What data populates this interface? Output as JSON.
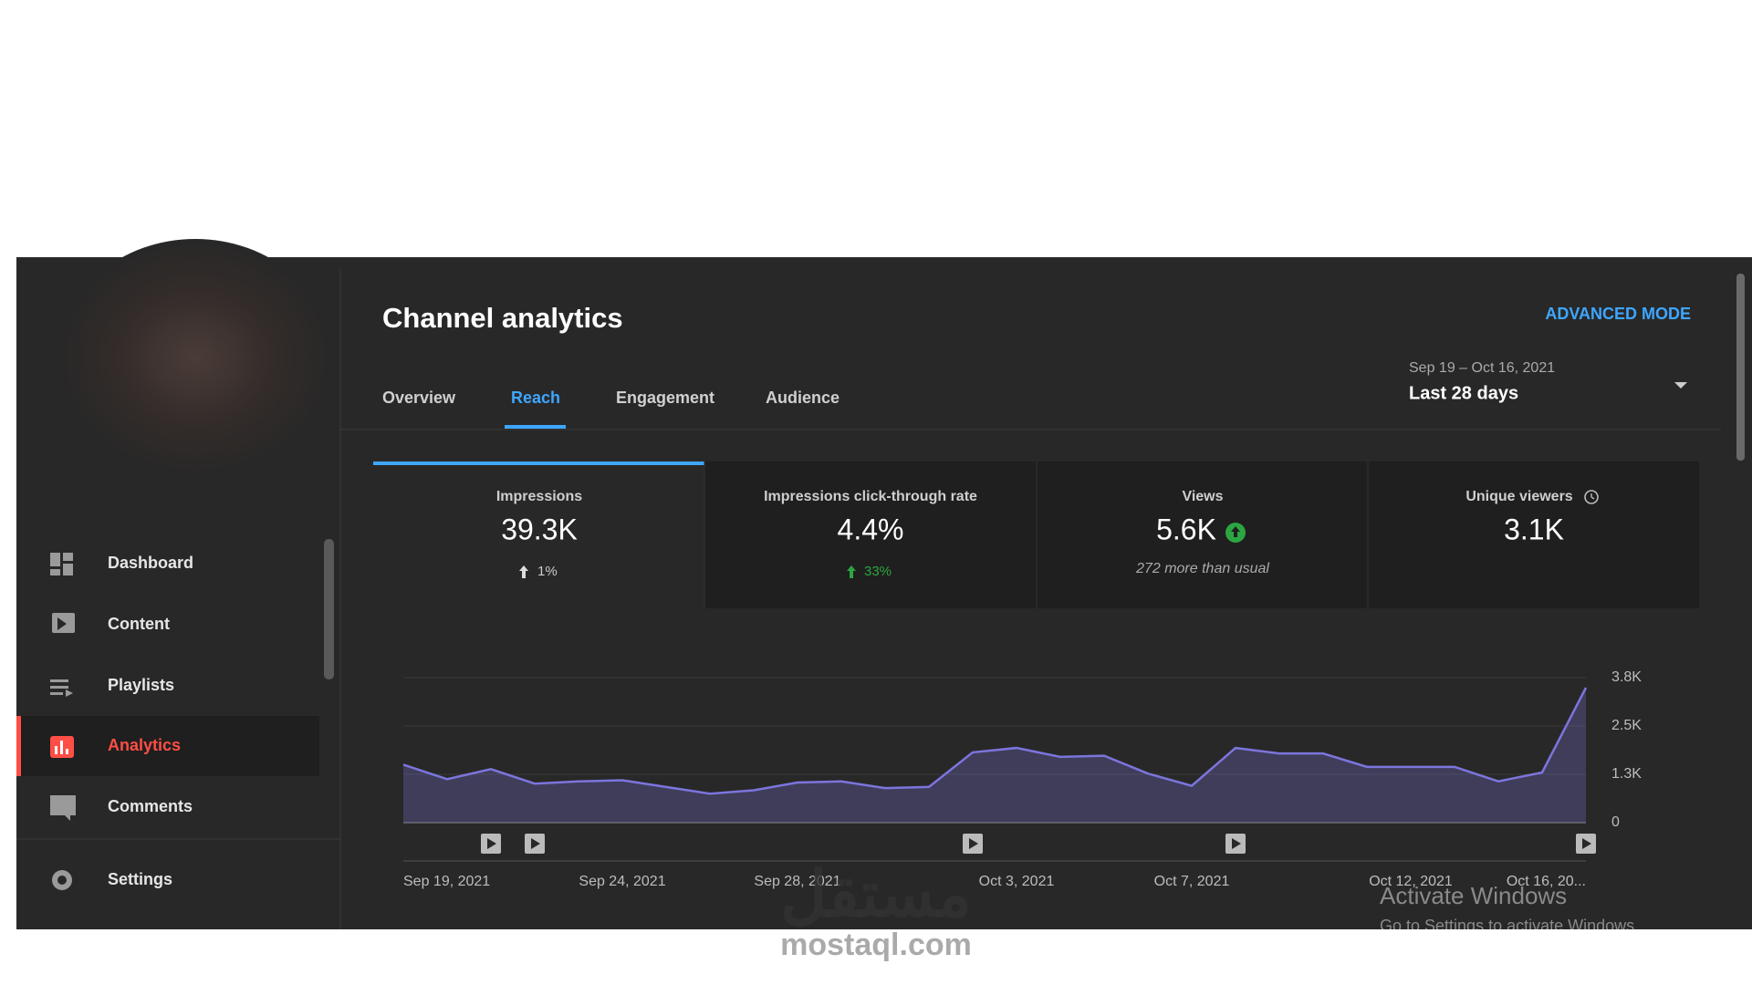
{
  "sidebar": {
    "nav": [
      "Dashboard",
      "Content",
      "Playlists",
      "Analytics",
      "Comments",
      "Settings"
    ]
  },
  "header": {
    "title": "Channel analytics",
    "advanced_mode": "ADVANCED MODE",
    "date_range": "Sep 19 – Oct 16, 2021",
    "period": "Last 28 days"
  },
  "tabs": [
    "Overview",
    "Reach",
    "Engagement",
    "Audience"
  ],
  "cards": [
    {
      "label": "Impressions",
      "value": "39.3K",
      "change": "1%"
    },
    {
      "label": "Impressions click-through rate",
      "value": "4.4%",
      "change": "33%"
    },
    {
      "label": "Views",
      "value": "5.6K",
      "note": "272 more than usual"
    },
    {
      "label": "Unique viewers",
      "value": "3.1K"
    }
  ],
  "chart_data": {
    "type": "area",
    "categories": [
      "Sep 19, 2021",
      null,
      null,
      null,
      null,
      "Sep 24, 2021",
      null,
      null,
      null,
      "Sep 28, 2021",
      null,
      null,
      null,
      null,
      "Oct 3, 2021",
      null,
      null,
      null,
      "Oct 7, 2021",
      null,
      null,
      null,
      null,
      "Oct 12, 2021",
      null,
      null,
      null,
      "Oct 16, 20..."
    ],
    "values": [
      1520,
      1140,
      1403,
      1023,
      1082,
      1111,
      935,
      760,
      848,
      1052,
      1082,
      906,
      935,
      1842,
      1958,
      1725,
      1754,
      1286,
      965,
      1958,
      1812,
      1812,
      1462,
      1462,
      1462,
      1082,
      1315,
      3537
    ],
    "color": "#7c75dd",
    "ylim": [
      0,
      3800
    ],
    "yticks": [
      0,
      {
        "value": 1267,
        "label": "1.3K"
      },
      {
        "value": 2533,
        "label": "2.5K"
      },
      {
        "value": 3800,
        "label": "3.8K"
      }
    ],
    "grid": true
  },
  "watermark": {
    "activate": "Activate Windows",
    "activate_hint": "Go to Settings to activate Windows",
    "logo": "مستقل",
    "brand": "mostaql.com"
  }
}
